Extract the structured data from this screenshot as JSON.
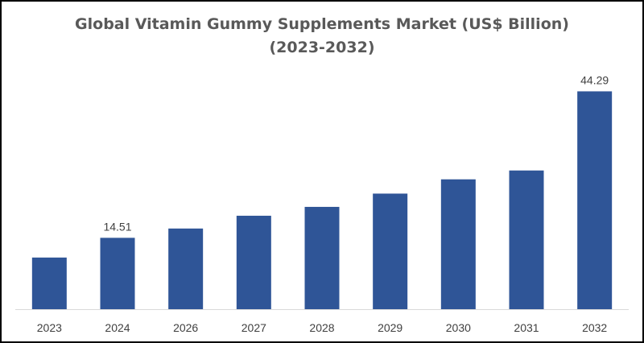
{
  "chart_data": {
    "type": "bar",
    "title": "Global Vitamin Gummy Supplements Market (US$ Billion)",
    "subtitle": "(2023-2032)",
    "categories": [
      "2023",
      "2024",
      "2026",
      "2027",
      "2028",
      "2029",
      "2030",
      "2031",
      "2032"
    ],
    "values": [
      10.5,
      14.51,
      16.4,
      19.0,
      20.8,
      23.5,
      26.4,
      28.2,
      44.29
    ],
    "data_labels": [
      {
        "index": 1,
        "text": "14.51"
      },
      {
        "index": 8,
        "text": "44.29"
      }
    ],
    "xlabel": "",
    "ylabel": "",
    "ylim": [
      0,
      46
    ],
    "grid": false,
    "legend": false,
    "bar_color": "#2F5597"
  }
}
